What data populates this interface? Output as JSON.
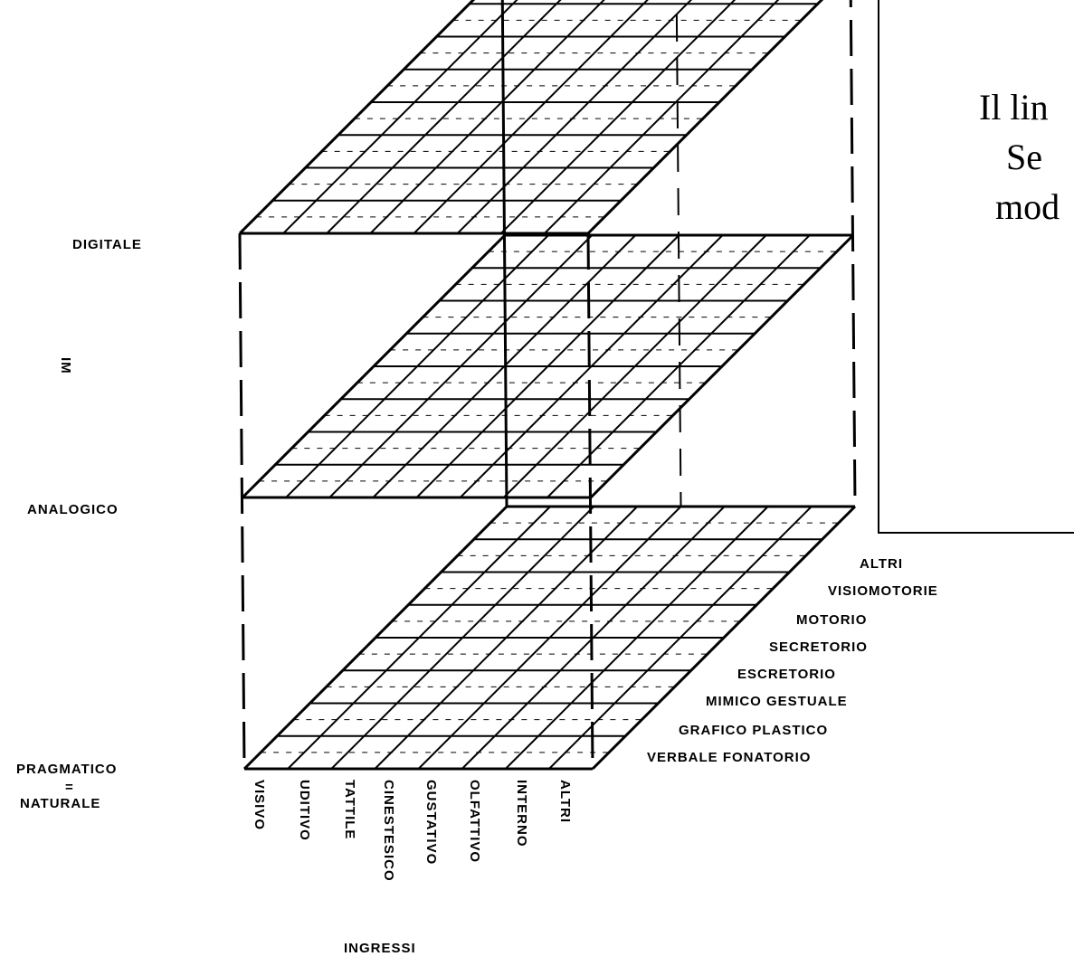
{
  "levels": {
    "digitale": "DIGITALE",
    "analogico": "ANALOGICO",
    "pragmatico": "PRAGMATICO",
    "separator": "=",
    "naturale": "NATURALE",
    "axis_letters": "IM"
  },
  "codes": [
    "ALTRI",
    "VISIOMOTORIE",
    "MOTORIO",
    "SECRETORIO",
    "ESCRETORIO",
    "MIMICO GESTUALE",
    "GRAFICO PLASTICO",
    "VERBALE FONATORIO"
  ],
  "senses": [
    "VISIVO",
    "UDITIVO",
    "TATTILE",
    "CINESTESICO",
    "GUSTATIVO",
    "OLFATTIVO",
    "INTERNO",
    "ALTRI"
  ],
  "senses_title": "INGRESSI",
  "callout": {
    "line1": "Il lin",
    "line2": "Se",
    "line3": "mod"
  },
  "colors": {
    "ink": "#000000",
    "paper": "#ffffff"
  }
}
